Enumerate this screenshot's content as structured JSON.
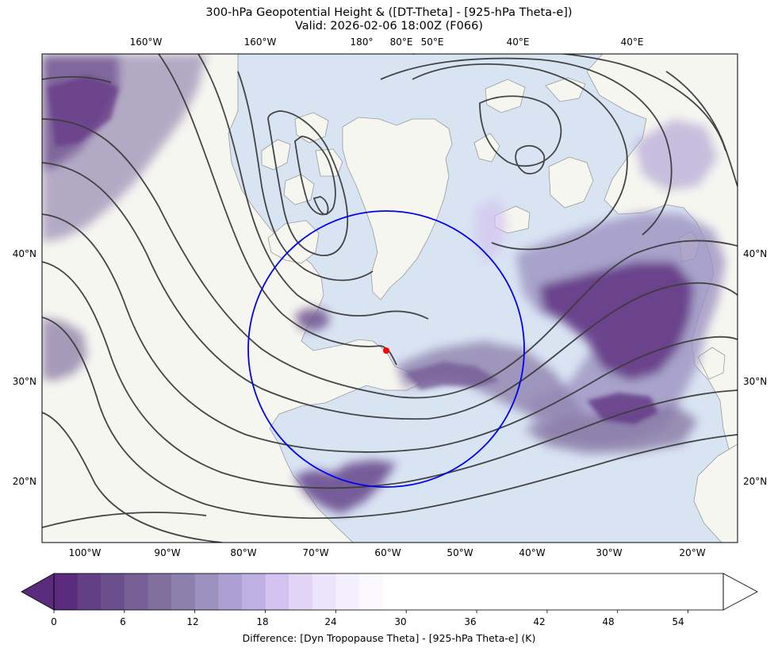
{
  "title": {
    "line1": "300-hPa Geopotential Height & ([DT-Theta] - [925-hPa Theta-e])",
    "line2": "Valid: 2026-02-06 18:00Z (F066)"
  },
  "map": {
    "projection": "polar-stereographic",
    "background_colors": {
      "ocean": "#d9e4f3",
      "land": "#f6f6f1",
      "coast": "#9a9a9a"
    },
    "top_lon_labels": [
      "160°W",
      "160°W",
      "180°",
      "80°E",
      "50°E",
      "40°E",
      "40°E"
    ],
    "bottom_lon_labels": [
      "100°W",
      "90°W",
      "80°W",
      "70°W",
      "60°W",
      "50°W",
      "40°W",
      "30°W",
      "20°W"
    ],
    "left_lat_labels": [
      "40°N",
      "30°N",
      "20°N"
    ],
    "right_lat_labels": [
      "40°N",
      "30°N",
      "20°N"
    ],
    "contour_field": "300-hPa Geopotential Height",
    "contour_color": "#3c3c3c",
    "fill_field": "[Dyn Tropopause Theta] - [925-hPa Theta-e]",
    "marker": {
      "type": "point",
      "color": "#ff0000",
      "lon": -60,
      "lat": 32
    },
    "ring": {
      "type": "circle",
      "color": "#0000ee",
      "center_lon": -60,
      "center_lat": 32
    }
  },
  "colorbar": {
    "label": "Difference: [Dyn Tropopause Theta] - [925-hPa Theta-e] (K)",
    "ticks": [
      "0",
      "6",
      "12",
      "18",
      "24",
      "30",
      "36",
      "42",
      "48",
      "54"
    ],
    "min": 0,
    "max": 57,
    "extend": "both",
    "levels": [
      0,
      2,
      4,
      6,
      8,
      10,
      12,
      14,
      16,
      18,
      20,
      22,
      24,
      26,
      28
    ],
    "colors": [
      "#5a2a7c",
      "#634086",
      "#6b4f8d",
      "#775f96",
      "#81709e",
      "#8d80ac",
      "#9b91bf",
      "#ad9fd3",
      "#bfb0e3",
      "#d3c2f0",
      "#e1d4f7",
      "#ece4fb",
      "#f4effd",
      "#faf8fe",
      "#ffffff"
    ],
    "under_color": "#5a2a7c",
    "over_color": "#ffffff"
  }
}
